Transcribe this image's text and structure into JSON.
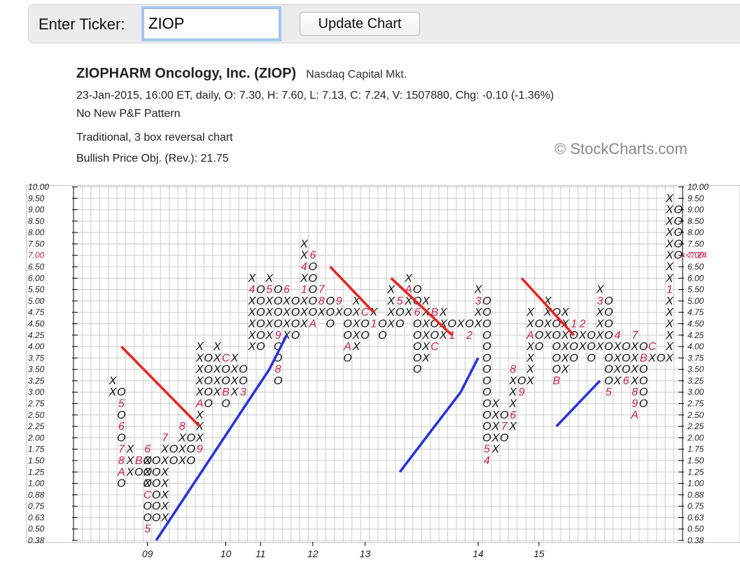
{
  "toolbar": {
    "ticker_label": "Enter Ticker:",
    "ticker_value": "ZIOP",
    "update_label": "Update Chart"
  },
  "header": {
    "title": "ZIOPHARM Oncology, Inc. (ZIOP)",
    "exchange": "Nasdaq Capital Mkt.",
    "quote_line": "23-Jan-2015, 16:00 ET, daily, O: 7.30, H: 7.60, L: 7.13, C: 7.24, V: 1507880, Chg: -0.10 (-1.36%)",
    "pattern": "No New P&F Pattern",
    "chart_type": "Traditional, 3 box reversal chart",
    "price_objective": "Bullish Price Obj. (Rev.): 21.75",
    "watermark": "© StockCharts.com"
  },
  "chart_data": {
    "type": "point-and-figure",
    "y_levels": [
      "10.00",
      "9.50",
      "9.00",
      "8.50",
      "8.00",
      "7.50",
      "7.00",
      "6.50",
      "6.00",
      "5.50",
      "5.00",
      "4.75",
      "4.50",
      "4.25",
      "4.00",
      "3.75",
      "3.50",
      "3.25",
      "3.00",
      "2.75",
      "2.50",
      "2.25",
      "2.00",
      "1.75",
      "1.50",
      "1.25",
      "1.00",
      "0.88",
      "0.75",
      "0.63",
      "0.50",
      "0.38"
    ],
    "highlight_level": "7.00",
    "last_price_label": "<<7.24",
    "x_labels": [
      {
        "col": 8,
        "label": "09"
      },
      {
        "col": 17,
        "label": "10"
      },
      {
        "col": 21,
        "label": "11"
      },
      {
        "col": 27,
        "label": "12"
      },
      {
        "col": 33,
        "label": "13"
      },
      {
        "col": 46,
        "label": "14"
      },
      {
        "col": 53,
        "label": "15"
      }
    ],
    "columns": [
      {
        "col": 4,
        "type": "X",
        "low": "3.00",
        "high": "3.25"
      },
      {
        "col": 5,
        "type": "O",
        "high": "3.00",
        "low": "1.00",
        "marks": {
          "2.75": "5",
          "2.25": "6",
          "1.75": "7",
          "1.50": "8",
          "1.25": "A"
        }
      },
      {
        "col": 6,
        "type": "X",
        "low": "1.25",
        "high": "1.75"
      },
      {
        "col": 7,
        "type": "O",
        "high": "1.50",
        "low": "1.25",
        "marks": {
          "1.50": "B"
        }
      },
      {
        "col": 8,
        "type": "X",
        "low": "1.00",
        "high": "1.75",
        "marks": {
          "1.75": "6"
        }
      },
      {
        "col": 8,
        "type": "O",
        "high": "1.50",
        "low": "0.50",
        "marks": {
          "0.88": "C",
          "0.50": "5"
        }
      },
      {
        "col": 9,
        "type": "O",
        "high": "1.50",
        "low": "0.63"
      },
      {
        "col": 10,
        "type": "X",
        "low": "0.63",
        "high": "2.00",
        "marks": {
          "2.00": "7"
        }
      },
      {
        "col": 11,
        "type": "O",
        "high": "1.75",
        "low": "1.50"
      },
      {
        "col": 12,
        "type": "X",
        "low": "1.50",
        "high": "2.25",
        "marks": {
          "2.25": "8"
        }
      },
      {
        "col": 13,
        "type": "O",
        "high": "2.00",
        "low": "1.50"
      },
      {
        "col": 14,
        "type": "X",
        "low": "1.75",
        "high": "4.00",
        "marks": {
          "1.75": "9",
          "2.75": "A"
        }
      },
      {
        "col": 15,
        "type": "O",
        "high": "3.75",
        "low": "2.75"
      },
      {
        "col": 16,
        "type": "X",
        "low": "3.00",
        "high": "4.00"
      },
      {
        "col": 17,
        "type": "O",
        "high": "3.75",
        "low": "2.75",
        "marks": {
          "3.75": "C",
          "3.00": "B"
        }
      },
      {
        "col": 18,
        "type": "X",
        "low": "3.00",
        "high": "3.75"
      },
      {
        "col": 19,
        "type": "O",
        "high": "3.50",
        "low": "3.00",
        "marks": {
          "3.00": "3"
        }
      },
      {
        "col": 20,
        "type": "X",
        "low": "4.00",
        "high": "6.00",
        "marks": {
          "5.50": "4"
        }
      },
      {
        "col": 21,
        "type": "O",
        "high": "5.50",
        "low": "4.00"
      },
      {
        "col": 22,
        "type": "X",
        "low": "4.25",
        "high": "6.00",
        "marks": {
          "5.50": "5"
        }
      },
      {
        "col": 23,
        "type": "O",
        "high": "5.50",
        "low": "3.25",
        "marks": {
          "4.25": "9",
          "3.50": "8"
        }
      },
      {
        "col": 24,
        "type": "X",
        "low": "4.25",
        "high": "5.50",
        "marks": {
          "5.50": "6"
        }
      },
      {
        "col": 25,
        "type": "O",
        "high": "5.00",
        "low": "4.25"
      },
      {
        "col": 26,
        "type": "X",
        "low": "4.50",
        "high": "7.50",
        "marks": {
          "5.50": "1",
          "6.50": "4"
        }
      },
      {
        "col": 27,
        "type": "O",
        "high": "7.00",
        "low": "4.50",
        "marks": {
          "7.00": "6",
          "4.50": "A"
        }
      },
      {
        "col": 28,
        "type": "X",
        "low": "4.75",
        "high": "5.50",
        "marks": {
          "5.50": "7",
          "5.00": "8"
        }
      },
      {
        "col": 29,
        "type": "O",
        "high": "5.00",
        "low": "4.50"
      },
      {
        "col": 30,
        "type": "X",
        "low": "4.75",
        "high": "5.00",
        "marks": {
          "5.00": "9"
        }
      },
      {
        "col": 31,
        "type": "O",
        "high": "4.75",
        "low": "3.75",
        "marks": {
          "4.00": "A"
        }
      },
      {
        "col": 32,
        "type": "X",
        "low": "4.00",
        "high": "5.00"
      },
      {
        "col": 33,
        "type": "O",
        "high": "4.75",
        "low": "4.25",
        "marks": {
          "4.75": "C"
        }
      },
      {
        "col": 34,
        "type": "X",
        "low": "4.50",
        "high": "4.75",
        "marks": {
          "4.50": "1"
        }
      },
      {
        "col": 35,
        "type": "O",
        "high": "4.50",
        "low": "4.25"
      },
      {
        "col": 36,
        "type": "X",
        "low": "4.50",
        "high": "5.50"
      },
      {
        "col": 37,
        "type": "O",
        "high": "5.00",
        "low": "4.50",
        "marks": {
          "5.00": "5"
        }
      },
      {
        "col": 38,
        "type": "X",
        "low": "4.75",
        "high": "6.00",
        "marks": {
          "5.50": "A"
        }
      },
      {
        "col": 39,
        "type": "O",
        "high": "5.50",
        "low": "3.50",
        "marks": {
          "4.75": "6"
        }
      },
      {
        "col": 40,
        "type": "X",
        "low": "3.75",
        "high": "5.00"
      },
      {
        "col": 41,
        "type": "O",
        "high": "4.75",
        "low": "4.00",
        "marks": {
          "4.75": "B",
          "4.00": "C"
        }
      },
      {
        "col": 42,
        "type": "X",
        "low": "4.25",
        "high": "4.75"
      },
      {
        "col": 43,
        "type": "O",
        "high": "4.50",
        "low": "4.25",
        "marks": {
          "4.25": "1"
        }
      },
      {
        "col": 44,
        "type": "X",
        "low": "4.50",
        "high": "4.50"
      },
      {
        "col": 45,
        "type": "O",
        "high": "4.50",
        "low": "4.25",
        "marks": {
          "4.25": "2"
        }
      },
      {
        "col": 46,
        "type": "X",
        "low": "4.50",
        "high": "5.50",
        "marks": {
          "5.00": "3"
        }
      },
      {
        "col": 47,
        "type": "O",
        "high": "5.00",
        "low": "1.50",
        "marks": {
          "1.50": "4",
          "1.75": "5"
        }
      },
      {
        "col": 48,
        "type": "X",
        "low": "1.75",
        "high": "2.75"
      },
      {
        "col": 49,
        "type": "O",
        "high": "2.50",
        "low": "2.00",
        "marks": {
          "2.25": "7"
        }
      },
      {
        "col": 50,
        "type": "X",
        "low": "2.25",
        "high": "3.50",
        "marks": {
          "2.50": "6",
          "3.50": "8"
        }
      },
      {
        "col": 51,
        "type": "O",
        "high": "3.25",
        "low": "3.00",
        "marks": {
          "3.00": "9"
        }
      },
      {
        "col": 52,
        "type": "X",
        "low": "3.25",
        "high": "4.75",
        "marks": {
          "4.25": "A"
        }
      },
      {
        "col": 53,
        "type": "O",
        "high": "4.50",
        "low": "4.00"
      },
      {
        "col": 54,
        "type": "X",
        "low": "4.25",
        "high": "5.00"
      },
      {
        "col": 55,
        "type": "O",
        "high": "4.75",
        "low": "3.25",
        "marks": {
          "3.25": "B"
        }
      },
      {
        "col": 56,
        "type": "X",
        "low": "3.50",
        "high": "4.75"
      },
      {
        "col": 57,
        "type": "O",
        "high": "4.50",
        "low": "3.75",
        "marks": {
          "4.50": "1"
        }
      },
      {
        "col": 58,
        "type": "X",
        "low": "4.00",
        "high": "4.50",
        "marks": {
          "4.50": "2"
        }
      },
      {
        "col": 59,
        "type": "O",
        "high": "4.25",
        "low": "3.75"
      },
      {
        "col": 60,
        "type": "X",
        "low": "4.00",
        "high": "5.50",
        "marks": {
          "5.00": "3"
        }
      },
      {
        "col": 61,
        "type": "O",
        "high": "5.00",
        "low": "3.00",
        "marks": {
          "3.00": "5"
        }
      },
      {
        "col": 62,
        "type": "X",
        "low": "3.25",
        "high": "4.25",
        "marks": {
          "4.25": "4"
        }
      },
      {
        "col": 63,
        "type": "O",
        "high": "4.00",
        "low": "3.25",
        "marks": {
          "3.25": "6"
        }
      },
      {
        "col": 64,
        "type": "X",
        "low": "2.50",
        "high": "4.25",
        "marks": {
          "4.25": "7",
          "3.00": "8",
          "2.75": "9",
          "2.50": "A"
        }
      },
      {
        "col": 65,
        "type": "O",
        "high": "4.00",
        "low": "2.75",
        "marks": {
          "3.75": "B"
        }
      },
      {
        "col": 66,
        "type": "X",
        "low": "3.75",
        "high": "4.00",
        "marks": {
          "4.00": "C"
        }
      },
      {
        "col": 67,
        "type": "O",
        "high": "3.75",
        "low": "3.75"
      },
      {
        "col": 68,
        "type": "X",
        "low": "3.75",
        "high": "9.50",
        "marks": {
          "5.50": "1"
        }
      },
      {
        "col": 69,
        "type": "O",
        "high": "9.00",
        "low": "7.00"
      }
    ],
    "resistance_lines": [
      {
        "from": [
          5,
          "4.00"
        ],
        "to": [
          14,
          "2.25"
        ]
      },
      {
        "from": [
          29,
          "6.50"
        ],
        "to": [
          34,
          "4.75"
        ]
      },
      {
        "from": [
          36,
          "6.00"
        ],
        "to": [
          43,
          "4.25"
        ]
      },
      {
        "from": [
          51,
          "6.00"
        ],
        "to": [
          57,
          "4.25"
        ]
      }
    ],
    "support_lines": [
      {
        "from": [
          9,
          "0.38"
        ],
        "to": [
          22,
          "3.50"
        ]
      },
      {
        "from": [
          22,
          "3.50"
        ],
        "to": [
          24,
          "4.25"
        ]
      },
      {
        "from": [
          37,
          "1.25"
        ],
        "to": [
          44,
          "3.00"
        ]
      },
      {
        "from": [
          44,
          "3.00"
        ],
        "to": [
          46,
          "3.75"
        ]
      },
      {
        "from": [
          55,
          "2.25"
        ],
        "to": [
          60,
          "3.25"
        ]
      }
    ]
  }
}
